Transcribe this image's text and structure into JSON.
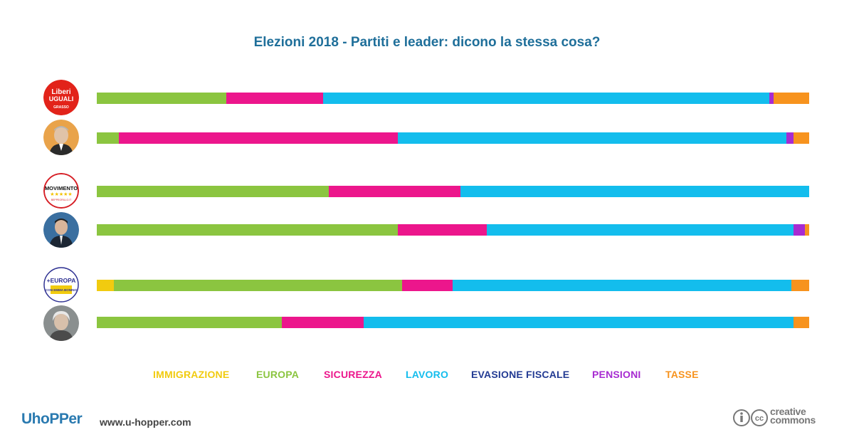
{
  "title": "Elezioni 2018 - Partiti e leader: dicono la stessa cosa?",
  "colors": {
    "IMMIGRAZIONE": "#f1cb0f",
    "EUROPA": "#8bc540",
    "SICUREZZA": "#ec168c",
    "LAVORO": "#13bded",
    "EVASIONE FISCALE": "#233b93",
    "PENSIONI": "#a72bd1",
    "TASSE": "#f7931e"
  },
  "chart_data": {
    "type": "bar",
    "stacked": true,
    "orientation": "horizontal",
    "unit": "share",
    "categories": [
      "IMMIGRAZIONE",
      "EUROPA",
      "SICUREZZA",
      "LAVORO",
      "EVASIONE FISCALE",
      "PENSIONI",
      "TASSE"
    ],
    "rows": [
      {
        "icon": "liberi-e-uguali-logo-icon",
        "logo_text": [
          "Liberi",
          "UGUALI",
          "GRASSO"
        ],
        "values": [
          0,
          18.2,
          13.6,
          62.7,
          0,
          0.6,
          4.9
        ]
      },
      {
        "icon": "pietro-grasso-portrait-icon",
        "values": [
          0,
          3.1,
          39.2,
          54.6,
          0,
          1.0,
          2.1
        ]
      },
      {
        "icon": "movimento-5-stelle-logo-icon",
        "logo_text": [
          "MOVIMENTO",
          "BEPPEGRILLO.IT"
        ],
        "values": [
          0,
          32.6,
          18.5,
          48.9,
          0,
          0,
          0
        ]
      },
      {
        "icon": "luigi-di-maio-portrait-icon",
        "values": [
          0,
          42.3,
          12.5,
          43.1,
          0,
          1.6,
          0.5
        ]
      },
      {
        "icon": "piu-europa-logo-icon",
        "logo_text": [
          "+EUROPA",
          "CON EMMA BONINO"
        ],
        "values": [
          2.4,
          40.5,
          7.1,
          47.6,
          0,
          0,
          2.4
        ]
      },
      {
        "icon": "emma-bonino-portrait-icon",
        "values": [
          0,
          26.0,
          11.5,
          60.4,
          0,
          0,
          2.1
        ]
      }
    ]
  },
  "legend": [
    "IMMIGRAZIONE",
    "EUROPA",
    "SICUREZZA",
    "LAVORO",
    "EVASIONE FISCALE",
    "PENSIONI",
    "TASSE"
  ],
  "footer": {
    "brand": "UhoPPer",
    "url": "www.u-hopper.com",
    "license_line1": "creative",
    "license_line2": "commons"
  }
}
